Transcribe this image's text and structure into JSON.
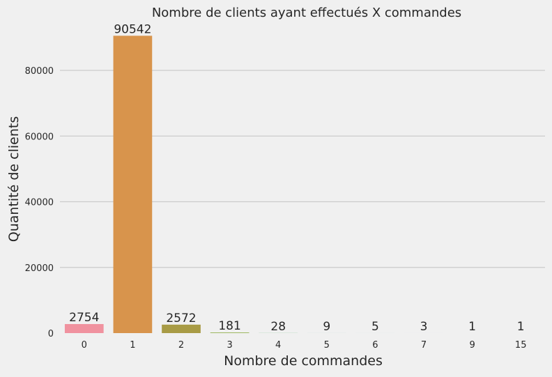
{
  "chart_data": {
    "type": "bar",
    "title": "Nombre de clients ayant effectués X commandes",
    "xlabel": "Nombre de commandes",
    "ylabel": "Quantité de clients",
    "categories": [
      "0",
      "1",
      "2",
      "3",
      "4",
      "5",
      "6",
      "7",
      "9",
      "15"
    ],
    "values": [
      2754,
      90542,
      2572,
      181,
      28,
      9,
      5,
      3,
      1,
      1
    ],
    "data_labels": [
      "2754",
      "90542",
      "2572",
      "181",
      "28",
      "9",
      "5",
      "3",
      "1",
      "1"
    ],
    "y_ticks": [
      0,
      20000,
      40000,
      60000,
      80000
    ],
    "y_tick_labels": [
      "0",
      "20000",
      "40000",
      "60000",
      "80000"
    ],
    "ylim": [
      0,
      95069
    ],
    "grid": "horizontal",
    "legend": "none",
    "colors": [
      "#f0929f",
      "#d8944c",
      "#a89b45",
      "#8fae47",
      "#4daf6c",
      "#4cae96",
      "#50aab5",
      "#5ba5da",
      "#b096e8",
      "#ef8cd6"
    ]
  }
}
